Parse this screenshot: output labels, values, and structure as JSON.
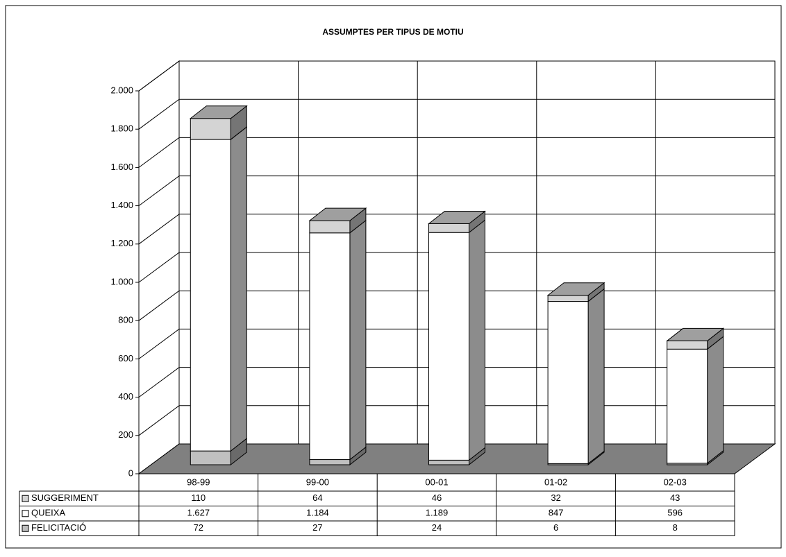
{
  "chart_data": {
    "type": "bar3d-stacked",
    "title": "ASSUMPTES PER TIPUS DE MOTIU",
    "categories": [
      "98-99",
      "99-00",
      "00-01",
      "01-02",
      "02-03"
    ],
    "series": [
      {
        "name": "SUGGERIMENT",
        "color": "#d4d4d4",
        "values": [
          110,
          64,
          46,
          32,
          43
        ]
      },
      {
        "name": "QUEIXA",
        "color": "#ffffff",
        "values": [
          1627,
          1184,
          1189,
          847,
          596
        ],
        "value_labels": [
          "1.627",
          "1.184",
          "1.189",
          "847",
          "596"
        ]
      },
      {
        "name": "FELICITACIÓ",
        "color": "#c0c0c0",
        "values": [
          72,
          27,
          24,
          6,
          8
        ]
      }
    ],
    "ylim": [
      0,
      2000
    ],
    "yticks": [
      0,
      200,
      400,
      600,
      800,
      {
        "value": 1000,
        "label": "1.000"
      },
      {
        "value": 1200,
        "label": "1.200"
      },
      {
        "value": 1400,
        "label": "1.400"
      },
      {
        "value": 1600,
        "label": "1.600"
      },
      {
        "value": 1800,
        "label": "1.800"
      },
      {
        "value": 2000,
        "label": "2.000"
      }
    ],
    "grid": true,
    "floor_color": "#808080"
  }
}
